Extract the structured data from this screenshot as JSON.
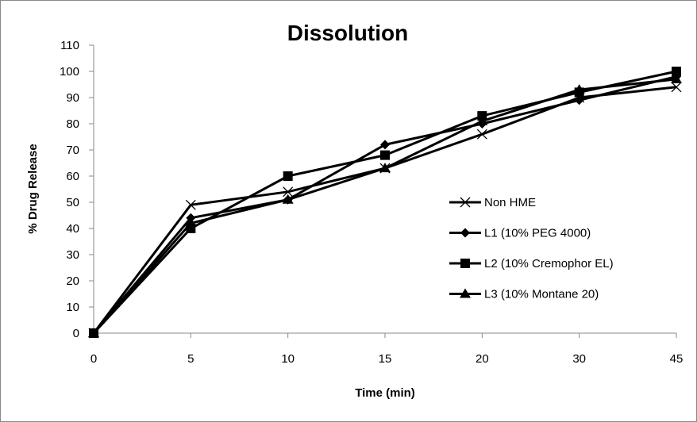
{
  "chart_data": {
    "type": "line",
    "title": "Dissolution",
    "xlabel": "Time (min)",
    "ylabel": "% Drug Release",
    "categories": [
      "0",
      "5",
      "10",
      "15",
      "20",
      "30",
      "45"
    ],
    "ylim": [
      0,
      110
    ],
    "yticks": [
      0,
      10,
      20,
      30,
      40,
      50,
      60,
      70,
      80,
      90,
      100,
      110
    ],
    "grid": false,
    "legend_position": "right",
    "series": [
      {
        "name": "Non HME",
        "marker": "x",
        "values": [
          0,
          49,
          54,
          63,
          76,
          90,
          94
        ]
      },
      {
        "name": "L1 (10% PEG 4000)",
        "marker": "diamond",
        "values": [
          0,
          44,
          51,
          72,
          80,
          89,
          98
        ]
      },
      {
        "name": "L2 (10% Cremophor EL)",
        "marker": "square",
        "values": [
          0,
          40,
          60,
          68,
          83,
          92,
          100
        ]
      },
      {
        "name": "L3 (10% Montane 20)",
        "marker": "triangle",
        "values": [
          0,
          42,
          51,
          63,
          81,
          93,
          97
        ]
      }
    ]
  }
}
